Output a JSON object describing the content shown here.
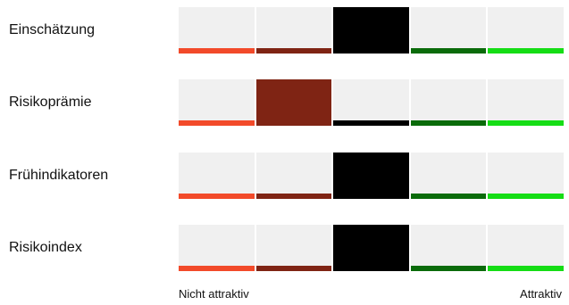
{
  "segment_colors": [
    "#f24a2a",
    "#7f2414",
    "#000000",
    "#0a6b0a",
    "#15dd15"
  ],
  "rows": [
    {
      "label": "Einschätzung",
      "active_index": 2
    },
    {
      "label": "Risikoprämie",
      "active_index": 1
    },
    {
      "label": "Frühindikatoren",
      "active_index": 2
    },
    {
      "label": "Risikoindex",
      "active_index": 2
    }
  ],
  "legend": {
    "left": "Nicht attraktiv",
    "right": "Attraktiv"
  }
}
